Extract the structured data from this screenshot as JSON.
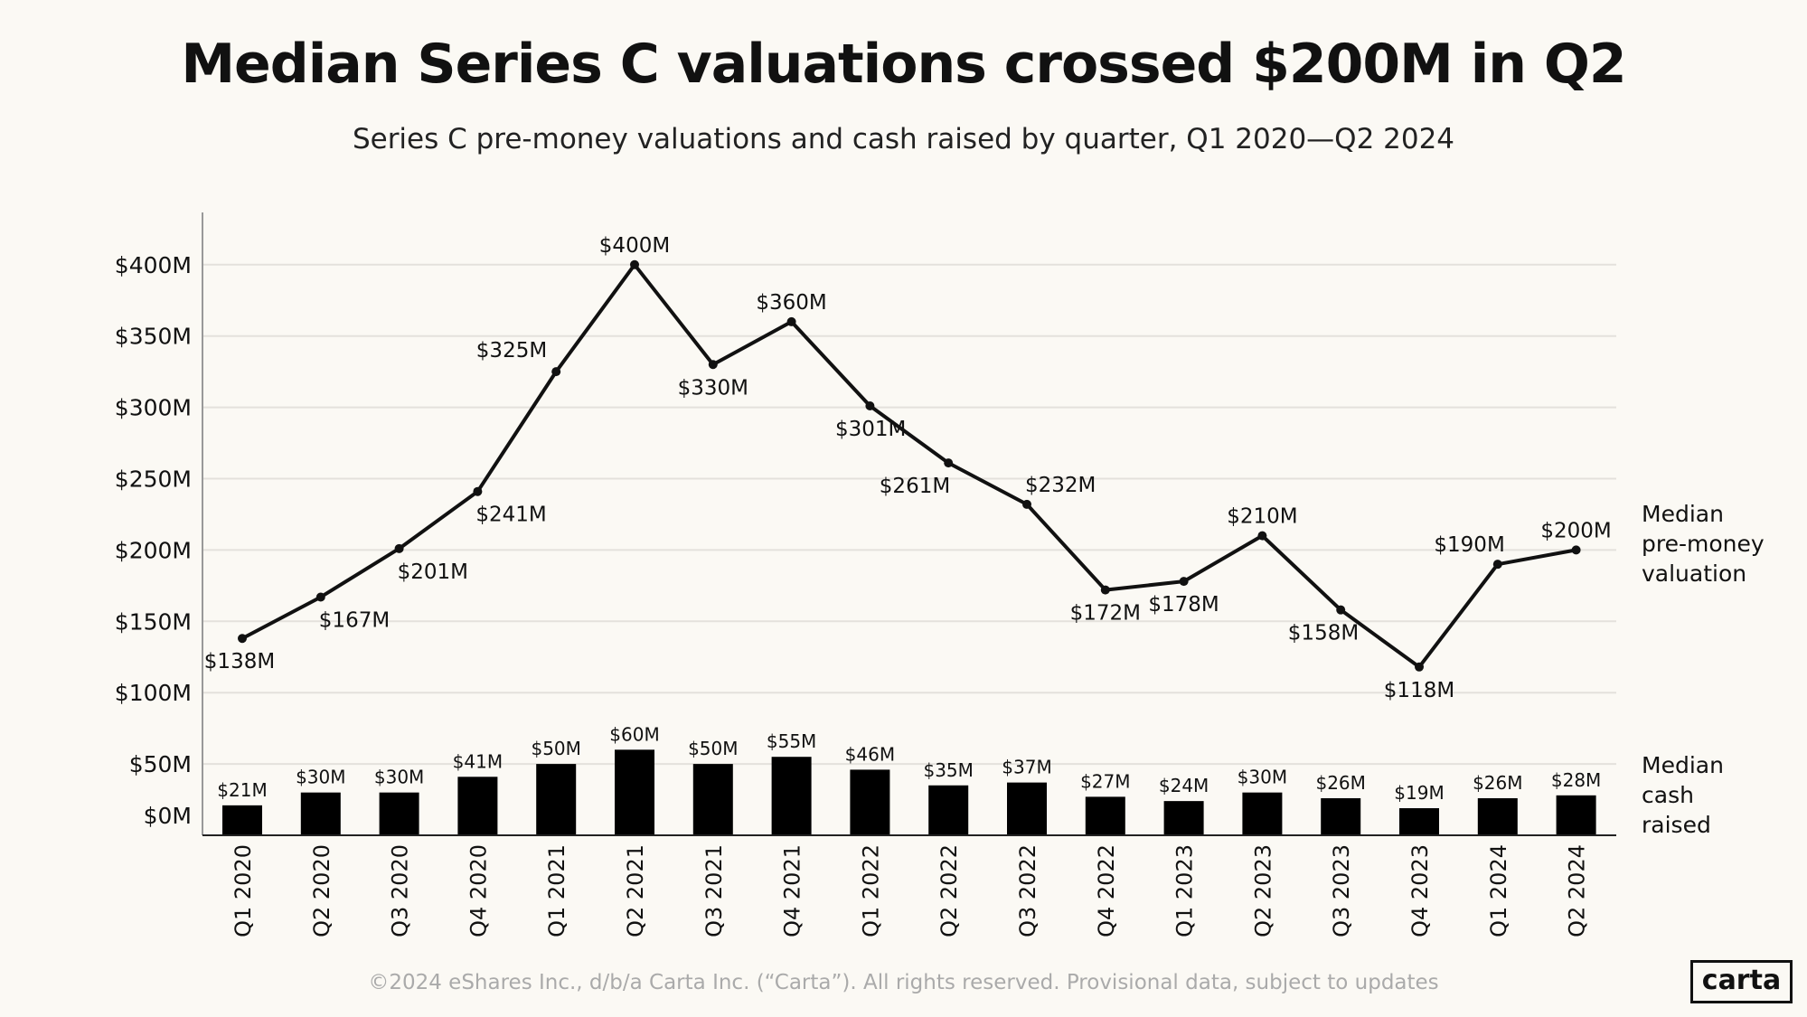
{
  "title": "Median Series C valuations crossed $200M in Q2",
  "subtitle": "Series C pre-money valuations and cash raised by quarter, Q1 2020—Q2 2024",
  "footer": "©2024 eShares Inc., d/b/a Carta Inc. (“Carta”). All rights reserved. Provisional data, subject to updates",
  "logo": "carta",
  "chart_data": {
    "type": "line+bar",
    "categories": [
      "Q1 2020",
      "Q2 2020",
      "Q3 2020",
      "Q4 2020",
      "Q1 2021",
      "Q2 2021",
      "Q3 2021",
      "Q4 2021",
      "Q1 2022",
      "Q2 2022",
      "Q3 2022",
      "Q4 2022",
      "Q1 2023",
      "Q2 2023",
      "Q3 2023",
      "Q4 2023",
      "Q1 2024",
      "Q2 2024"
    ],
    "series": [
      {
        "name": "Median pre-money valuation",
        "type": "line",
        "values": [
          138,
          167,
          201,
          241,
          325,
          400,
          330,
          360,
          301,
          261,
          232,
          172,
          178,
          210,
          158,
          118,
          190,
          200
        ],
        "labels": [
          "$138M",
          "$167M",
          "$201M",
          "$241M",
          "$325M",
          "$400M",
          "$330M",
          "$360M",
          "$301M",
          "$261M",
          "$232M",
          "$172M",
          "$178M",
          "$210M",
          "$158M",
          "$118M",
          "$190M",
          "$200M"
        ]
      },
      {
        "name": "Median cash raised",
        "type": "bar",
        "values": [
          21,
          30,
          30,
          41,
          50,
          60,
          50,
          55,
          46,
          35,
          37,
          27,
          24,
          30,
          26,
          19,
          26,
          28
        ],
        "labels": [
          "$21M",
          "$30M",
          "$30M",
          "$41M",
          "$50M",
          "$60M",
          "$50M",
          "$55M",
          "$46M",
          "$35M",
          "$37M",
          "$27M",
          "$24M",
          "$30M",
          "$26M",
          "$19M",
          "$26M",
          "$28M"
        ]
      }
    ],
    "legend": {
      "valuation": [
        "Median",
        "pre-money",
        "valuation"
      ],
      "cash": [
        "Median",
        "cash",
        "raised"
      ]
    },
    "legend_placement": "right",
    "yticks": [
      0,
      50,
      100,
      150,
      200,
      250,
      300,
      350,
      400
    ],
    "ytick_labels": [
      "$0M",
      "$50M",
      "$100M",
      "$150M",
      "$200M",
      "$250M",
      "$300M",
      "$350M",
      "$400M"
    ],
    "ylim": [
      0,
      430
    ],
    "grid": true,
    "colors": {
      "line": "#111111",
      "bar": "#000000",
      "grid": "#e4e1dc",
      "background": "#fbf9f4"
    }
  }
}
